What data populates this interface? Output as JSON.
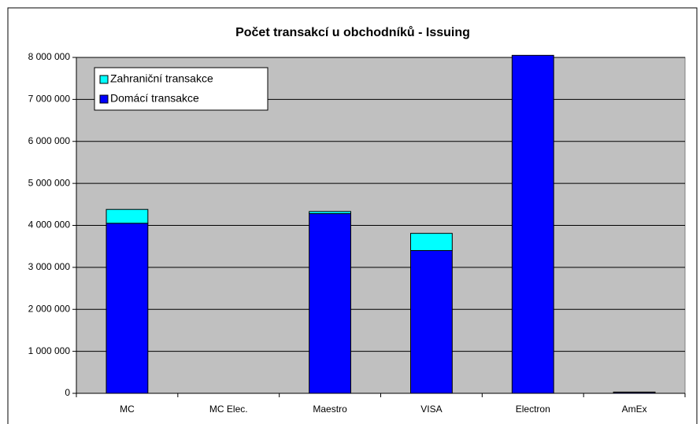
{
  "chart_data": {
    "type": "stacked_bar",
    "title": "Počet transakcí u obchodníků - Issuing",
    "categories": [
      "MC",
      "MC Elec.",
      "Maestro",
      "VISA",
      "Electron",
      "AmEx"
    ],
    "series": [
      {
        "name": "Domácí transakce",
        "color": "#0000ff",
        "values": [
          4050000,
          0,
          4280000,
          3400000,
          8050000,
          25000
        ]
      },
      {
        "name": "Zahraniční transakce",
        "color": "#00ffff",
        "values": [
          330000,
          0,
          50000,
          410000,
          0,
          5000
        ]
      }
    ],
    "ylim": [
      0,
      8000000
    ],
    "yticks": [
      0,
      {
        "value": 1000000,
        "label": "1 000 000"
      },
      {
        "value": 2000000,
        "label": "2 000 000"
      },
      {
        "value": 3000000,
        "label": "3 000 000"
      },
      {
        "value": 4000000,
        "label": "4 000 000"
      },
      {
        "value": 5000000,
        "label": "5 000 000"
      },
      {
        "value": 6000000,
        "label": "6 000 000"
      },
      {
        "value": 7000000,
        "label": "7 000 000"
      },
      {
        "value": 8000000,
        "label": "8 000 000"
      }
    ],
    "grid": true,
    "legend": "top-left"
  }
}
